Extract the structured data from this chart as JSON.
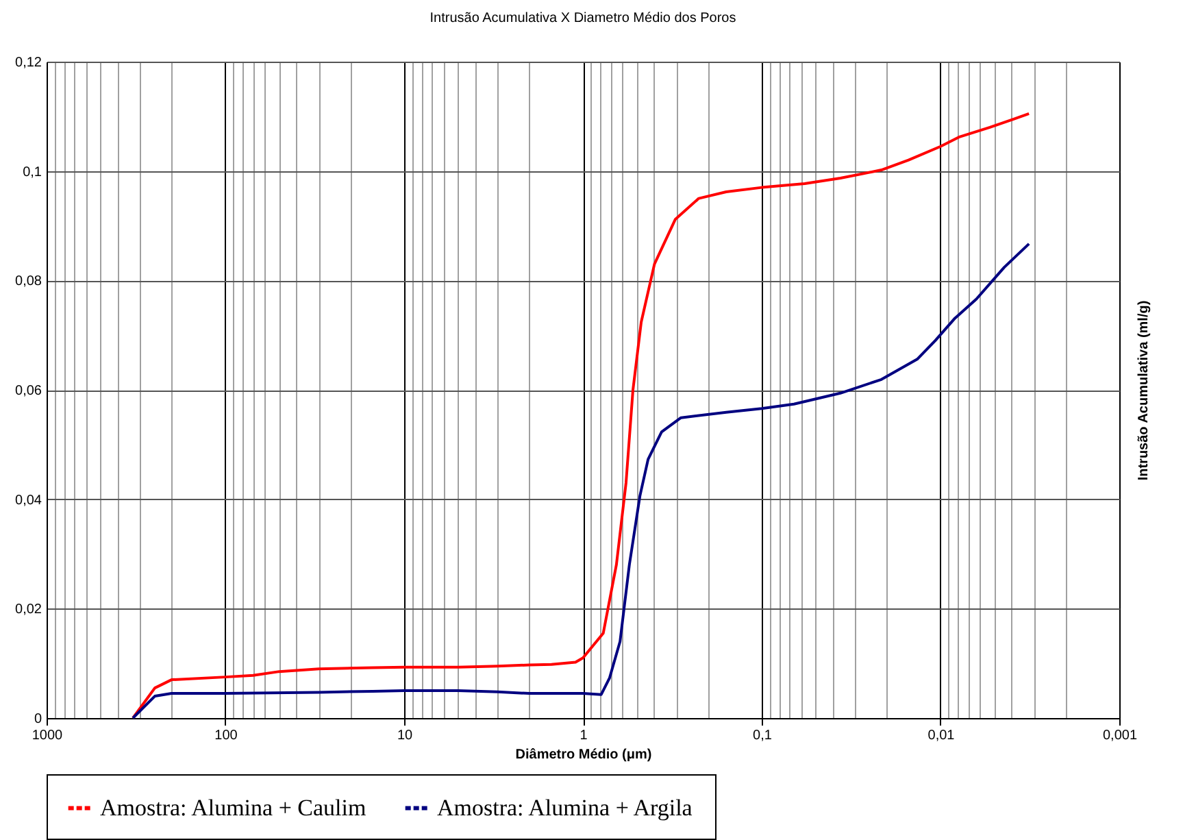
{
  "chart_data": {
    "type": "line",
    "title": "Intrusão Acumulativa X Diametro Médio dos Poros",
    "xlabel": "Diâmetro Médio (μm)",
    "ylabel": "Intrusão Acumulativa (ml/g)",
    "log": "x",
    "xlim": [
      1000,
      0.001
    ],
    "xticks": [
      1000,
      100,
      10,
      1,
      {
        "value": 0.1,
        "label": "0,1"
      },
      {
        "value": 0.01,
        "label": "0,01"
      },
      {
        "value": 0.001,
        "label": "0,001"
      }
    ],
    "ylim": [
      0,
      0.12
    ],
    "yticks": [
      0,
      {
        "value": 0.02,
        "label": "0,02"
      },
      {
        "value": 0.04,
        "label": "0,04"
      },
      {
        "value": 0.06,
        "label": "0,06"
      },
      {
        "value": 0.08,
        "label": "0,08"
      },
      {
        "value": 0.1,
        "label": "0,1"
      },
      {
        "value": 0.12,
        "label": "0,12"
      }
    ],
    "grid": true,
    "legend": "bottom",
    "series": [
      {
        "name": "Amostra: Alumina + Caulim",
        "color": "#ff0000",
        "x": [
          329,
          248,
          200,
          100,
          70,
          50,
          30,
          15,
          10,
          5,
          3,
          2,
          1.5,
          1.1,
          1,
          0.77,
          0.65,
          0.574,
          0.525,
          0.472,
          0.398,
          0.304,
          0.225,
          0.158,
          0.1,
          0.0575,
          0.0363,
          0.0214,
          0.0151,
          0.01,
          0.0079,
          0.0053,
          0.0039,
          0.0032
        ],
        "values": [
          0,
          0.0055,
          0.007,
          0.0075,
          0.0078,
          0.0085,
          0.009,
          0.0092,
          0.0093,
          0.0093,
          0.0095,
          0.0097,
          0.0098,
          0.0102,
          0.011,
          0.0155,
          0.028,
          0.043,
          0.06,
          0.0724,
          0.083,
          0.0912,
          0.095,
          0.0962,
          0.097,
          0.0977,
          0.0987,
          0.1002,
          0.102,
          0.1045,
          0.1062,
          0.108,
          0.1095,
          0.1105
        ]
      },
      {
        "name": "Amostra: Alumina + Argila",
        "color": "#000080",
        "x": [
          329,
          248,
          200,
          100,
          30,
          15,
          10,
          5,
          3,
          2,
          1,
          0.79,
          0.71,
          0.62,
          0.55,
          0.48,
          0.432,
          0.363,
          0.283,
          0.158,
          0.1,
          0.066,
          0.0363,
          0.0214,
          0.0135,
          0.0107,
          0.0083,
          0.0063,
          0.0044,
          0.0032
        ],
        "values": [
          0,
          0.004,
          0.0045,
          0.0045,
          0.0047,
          0.0049,
          0.005,
          0.005,
          0.0048,
          0.0045,
          0.0045,
          0.0043,
          0.0073,
          0.014,
          0.028,
          0.0406,
          0.0473,
          0.0523,
          0.0549,
          0.0559,
          0.0566,
          0.0574,
          0.0594,
          0.0619,
          0.0656,
          0.069,
          0.0731,
          0.0766,
          0.0824,
          0.0867
        ]
      }
    ]
  }
}
